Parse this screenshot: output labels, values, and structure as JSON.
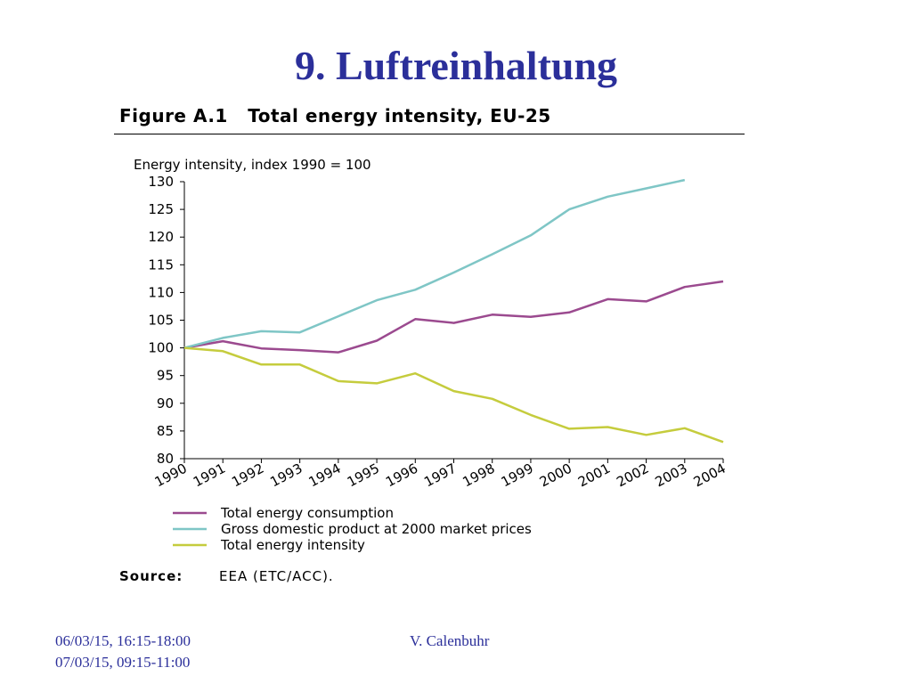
{
  "slide": {
    "title": "9. Luftreinhaltung",
    "footer_date_1": "06/03/15, 16:15-18:00",
    "footer_date_2": "07/03/15, 09:15-11:00",
    "footer_author": "V. Calenbuhr"
  },
  "figure": {
    "heading": "Figure A.1   Total energy intensity, EU-25",
    "source_label": "Source:",
    "source_text": "EEA (ETC/ACC)."
  },
  "chart_data": {
    "type": "line",
    "ylabel": "Energy intensity, index 1990 = 100",
    "ylim": [
      80,
      130
    ],
    "yticks": [
      130,
      125,
      120,
      115,
      110,
      105,
      100,
      95,
      90,
      85,
      80
    ],
    "categories": [
      "1990",
      "1991",
      "1992",
      "1993",
      "1994",
      "1995",
      "1996",
      "1997",
      "1998",
      "1999",
      "2000",
      "2001",
      "2002",
      "2003",
      "2004"
    ],
    "grid": false,
    "legend_position": "bottom",
    "series": [
      {
        "name": "Total energy consumption",
        "color": "#9b4a8f",
        "values": [
          100,
          101.2,
          99.9,
          99.6,
          99.2,
          101.3,
          105.2,
          104.5,
          106,
          105.6,
          106.4,
          108.8,
          108.4,
          111,
          112
        ]
      },
      {
        "name": "Gross domestic product at 2000 market prices",
        "color": "#7fc6c6",
        "values": [
          100,
          101.8,
          103,
          102.8,
          105.7,
          108.6,
          110.5,
          113.6,
          116.9,
          120.3,
          125,
          127.3,
          128.8,
          130.3,
          null
        ]
      },
      {
        "name": "Total energy intensity",
        "color": "#c5cc3d",
        "values": [
          100,
          99.4,
          97,
          97,
          94,
          93.6,
          95.4,
          92.2,
          90.8,
          87.9,
          85.4,
          85.7,
          84.3,
          85.5,
          83
        ]
      }
    ]
  }
}
